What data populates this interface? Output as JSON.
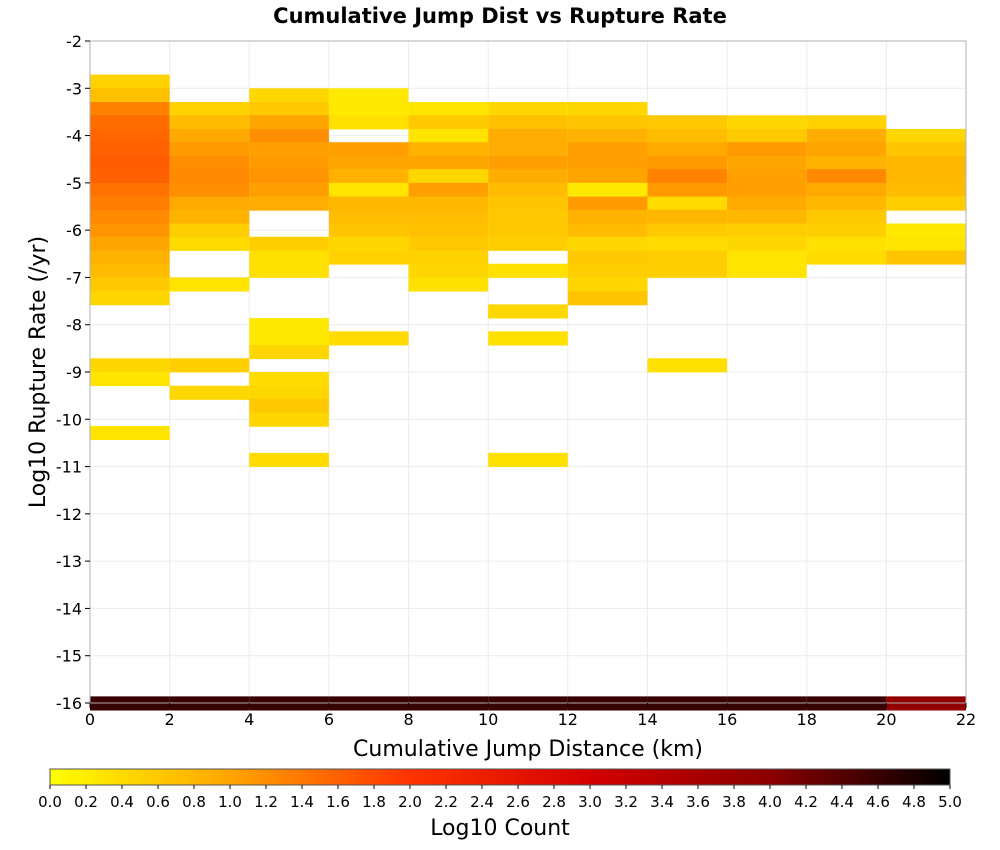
{
  "chart_data": {
    "type": "heatmap",
    "title": "Cumulative Jump Dist vs Rupture Rate",
    "xlabel": "Cumulative Jump Distance (km)",
    "ylabel": "Log10 Rupture Rate (/yr)",
    "colorbar_label": "Log10 Count",
    "xlim": [
      0,
      22
    ],
    "ylim": [
      -16,
      -2
    ],
    "x_ticks": [
      "0",
      "2",
      "4",
      "6",
      "8",
      "10",
      "12",
      "14",
      "16",
      "18",
      "20",
      "22"
    ],
    "y_ticks": [
      "-2",
      "-3",
      "-4",
      "-5",
      "-6",
      "-7",
      "-8",
      "-9",
      "-10",
      "-11",
      "-12",
      "-13",
      "-14",
      "-15",
      "-16"
    ],
    "colorbar_ticks": [
      "0.0",
      "0.2",
      "0.4",
      "0.6",
      "0.8",
      "1.0",
      "1.2",
      "1.4",
      "1.6",
      "1.8",
      "2.0",
      "2.2",
      "2.4",
      "2.6",
      "2.8",
      "3.0",
      "3.2",
      "3.4",
      "3.6",
      "3.8",
      "4.0",
      "4.2",
      "4.4",
      "4.6",
      "4.8",
      "5.0"
    ],
    "zlim": [
      0,
      5
    ],
    "colorscale": [
      "#ffff00",
      "#ffa500",
      "#ff3300",
      "#d40000",
      "#8b0000",
      "#000000"
    ],
    "grid": true,
    "x_bin_width": 2,
    "y_bin_height": 0.286,
    "columns": [
      {
        "x0": 0,
        "cells": [
          [
            -2.71,
            0.5
          ],
          [
            -3.0,
            0.7
          ],
          [
            -3.29,
            1.3
          ],
          [
            -3.57,
            1.5
          ],
          [
            -3.86,
            1.55
          ],
          [
            -4.14,
            1.6
          ],
          [
            -4.43,
            1.65
          ],
          [
            -4.71,
            1.6
          ],
          [
            -5.0,
            1.45
          ],
          [
            -5.29,
            1.35
          ],
          [
            -5.57,
            1.25
          ],
          [
            -5.86,
            1.15
          ],
          [
            -6.14,
            1.0
          ],
          [
            -6.43,
            0.85
          ],
          [
            -6.71,
            0.75
          ],
          [
            -7.0,
            0.6
          ],
          [
            -7.29,
            0.45
          ],
          [
            -8.71,
            0.45
          ],
          [
            -9.0,
            0.3
          ],
          [
            -10.14,
            0.3
          ],
          [
            -15.86,
            4.6
          ]
        ]
      },
      {
        "x0": 2,
        "cells": [
          [
            -3.29,
            0.5
          ],
          [
            -3.57,
            0.75
          ],
          [
            -3.86,
            0.95
          ],
          [
            -4.14,
            1.1
          ],
          [
            -4.43,
            1.2
          ],
          [
            -4.71,
            1.25
          ],
          [
            -5.0,
            1.2
          ],
          [
            -5.29,
            0.95
          ],
          [
            -5.57,
            0.85
          ],
          [
            -5.86,
            0.55
          ],
          [
            -6.14,
            0.4
          ],
          [
            -7.0,
            0.3
          ],
          [
            -8.71,
            0.55
          ],
          [
            -9.29,
            0.45
          ],
          [
            -15.86,
            4.6
          ]
        ]
      },
      {
        "x0": 4,
        "cells": [
          [
            -3.0,
            0.45
          ],
          [
            -3.29,
            0.6
          ],
          [
            -3.57,
            1.0
          ],
          [
            -3.86,
            1.2
          ],
          [
            -4.14,
            1.05
          ],
          [
            -4.43,
            1.1
          ],
          [
            -4.71,
            1.15
          ],
          [
            -5.0,
            1.05
          ],
          [
            -5.29,
            0.9
          ],
          [
            -6.14,
            0.55
          ],
          [
            -6.43,
            0.35
          ],
          [
            -6.71,
            0.35
          ],
          [
            -7.86,
            0.25
          ],
          [
            -8.14,
            0.25
          ],
          [
            -8.43,
            0.45
          ],
          [
            -9.0,
            0.4
          ],
          [
            -9.29,
            0.45
          ],
          [
            -9.57,
            0.6
          ],
          [
            -9.86,
            0.45
          ],
          [
            -10.71,
            0.4
          ],
          [
            -15.86,
            4.6
          ]
        ]
      },
      {
        "x0": 6,
        "cells": [
          [
            -3.0,
            0.25
          ],
          [
            -3.29,
            0.25
          ],
          [
            -3.57,
            0.35
          ],
          [
            -4.14,
            1.05
          ],
          [
            -4.43,
            1.0
          ],
          [
            -4.71,
            0.85
          ],
          [
            -5.0,
            0.3
          ],
          [
            -5.29,
            0.8
          ],
          [
            -5.57,
            0.75
          ],
          [
            -5.86,
            0.65
          ],
          [
            -6.14,
            0.45
          ],
          [
            -6.43,
            0.5
          ],
          [
            -8.14,
            0.4
          ],
          [
            -15.86,
            4.6
          ]
        ]
      },
      {
        "x0": 8,
        "cells": [
          [
            -3.29,
            0.3
          ],
          [
            -3.57,
            0.6
          ],
          [
            -3.86,
            0.3
          ],
          [
            -4.14,
            0.85
          ],
          [
            -4.43,
            1.0
          ],
          [
            -4.71,
            0.45
          ],
          [
            -5.0,
            1.05
          ],
          [
            -5.29,
            0.8
          ],
          [
            -5.57,
            0.75
          ],
          [
            -5.86,
            0.7
          ],
          [
            -6.14,
            0.6
          ],
          [
            -6.43,
            0.5
          ],
          [
            -6.71,
            0.45
          ],
          [
            -7.0,
            0.35
          ],
          [
            -15.86,
            4.6
          ]
        ]
      },
      {
        "x0": 10,
        "cells": [
          [
            -3.29,
            0.45
          ],
          [
            -3.57,
            0.7
          ],
          [
            -3.86,
            0.9
          ],
          [
            -4.14,
            0.9
          ],
          [
            -4.43,
            1.05
          ],
          [
            -4.71,
            0.9
          ],
          [
            -5.0,
            0.75
          ],
          [
            -5.29,
            0.65
          ],
          [
            -5.57,
            0.6
          ],
          [
            -5.86,
            0.6
          ],
          [
            -6.14,
            0.55
          ],
          [
            -6.71,
            0.35
          ],
          [
            -7.57,
            0.45
          ],
          [
            -8.14,
            0.35
          ],
          [
            -10.71,
            0.35
          ],
          [
            -15.86,
            4.6
          ]
        ]
      },
      {
        "x0": 12,
        "cells": [
          [
            -3.29,
            0.45
          ],
          [
            -3.57,
            0.65
          ],
          [
            -3.86,
            0.85
          ],
          [
            -4.14,
            1.05
          ],
          [
            -4.43,
            1.05
          ],
          [
            -4.71,
            1.0
          ],
          [
            -5.0,
            0.25
          ],
          [
            -5.29,
            1.1
          ],
          [
            -5.57,
            0.85
          ],
          [
            -5.86,
            0.75
          ],
          [
            -6.14,
            0.45
          ],
          [
            -6.43,
            0.6
          ],
          [
            -6.71,
            0.55
          ],
          [
            -7.0,
            0.45
          ],
          [
            -7.29,
            0.65
          ],
          [
            -15.86,
            4.6
          ]
        ]
      },
      {
        "x0": 14,
        "cells": [
          [
            -3.57,
            0.6
          ],
          [
            -3.86,
            0.75
          ],
          [
            -4.14,
            0.95
          ],
          [
            -4.43,
            1.1
          ],
          [
            -4.71,
            1.3
          ],
          [
            -5.0,
            1.1
          ],
          [
            -5.29,
            0.4
          ],
          [
            -5.57,
            0.8
          ],
          [
            -5.86,
            0.6
          ],
          [
            -6.14,
            0.4
          ],
          [
            -6.43,
            0.55
          ],
          [
            -6.71,
            0.55
          ],
          [
            -8.71,
            0.35
          ],
          [
            -15.86,
            4.6
          ]
        ]
      },
      {
        "x0": 16,
        "cells": [
          [
            -3.57,
            0.45
          ],
          [
            -3.86,
            0.6
          ],
          [
            -4.14,
            1.1
          ],
          [
            -4.43,
            1.0
          ],
          [
            -4.71,
            1.05
          ],
          [
            -5.0,
            1.05
          ],
          [
            -5.29,
            0.95
          ],
          [
            -5.57,
            0.8
          ],
          [
            -5.86,
            0.55
          ],
          [
            -6.14,
            0.45
          ],
          [
            -6.43,
            0.3
          ],
          [
            -6.71,
            0.3
          ],
          [
            -15.86,
            4.6
          ]
        ]
      },
      {
        "x0": 18,
        "cells": [
          [
            -3.57,
            0.5
          ],
          [
            -3.86,
            0.9
          ],
          [
            -4.14,
            1.0
          ],
          [
            -4.43,
            0.85
          ],
          [
            -4.71,
            1.25
          ],
          [
            -5.0,
            0.95
          ],
          [
            -5.29,
            0.8
          ],
          [
            -5.57,
            0.6
          ],
          [
            -5.86,
            0.55
          ],
          [
            -6.14,
            0.35
          ],
          [
            -6.43,
            0.4
          ],
          [
            -15.86,
            4.6
          ]
        ]
      },
      {
        "x0": 20,
        "cells": [
          [
            -3.86,
            0.45
          ],
          [
            -4.14,
            0.65
          ],
          [
            -4.43,
            0.8
          ],
          [
            -4.71,
            0.8
          ],
          [
            -5.0,
            0.75
          ],
          [
            -5.29,
            0.55
          ],
          [
            -5.86,
            0.25
          ],
          [
            -6.14,
            0.3
          ],
          [
            -6.43,
            0.65
          ],
          [
            -15.86,
            3.9
          ]
        ]
      }
    ]
  }
}
